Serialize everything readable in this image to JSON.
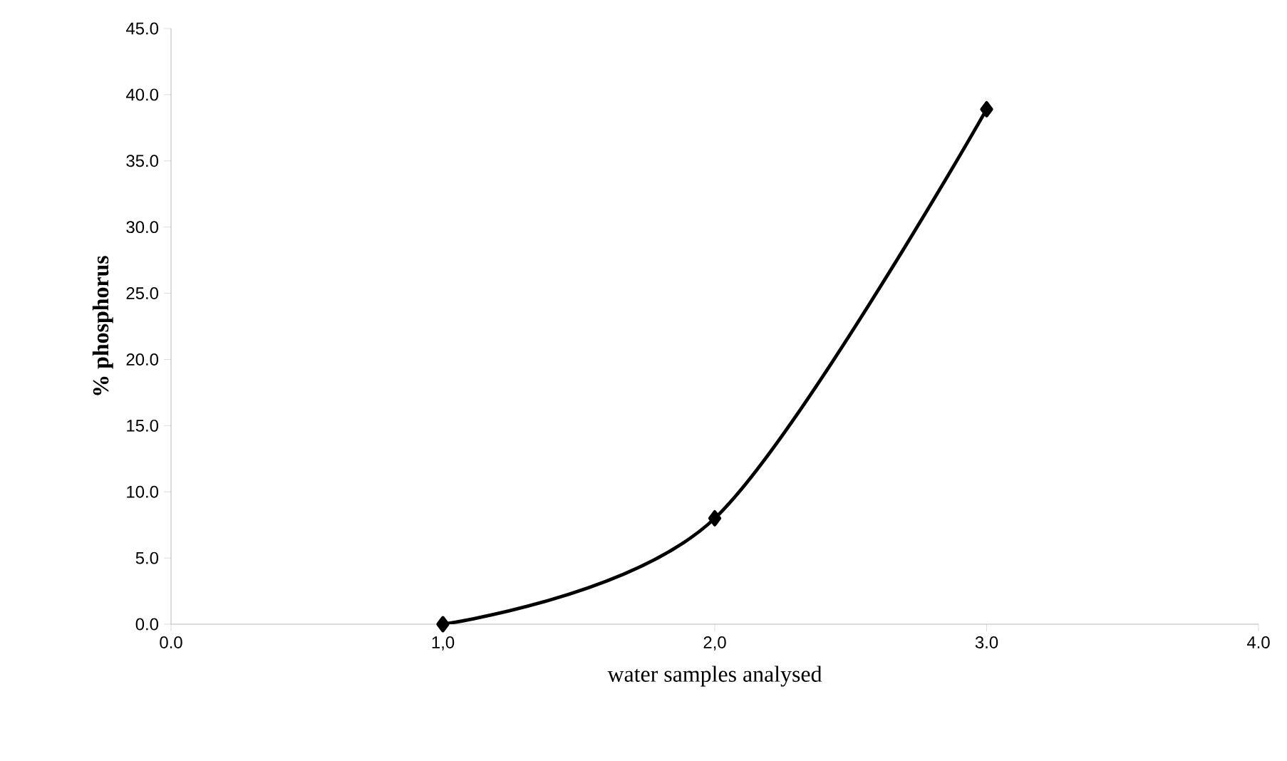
{
  "chart_data": {
    "type": "line",
    "xlabel": "water samples analysed",
    "ylabel": "% phosphorus",
    "x": [
      1,
      2,
      3
    ],
    "series": [
      {
        "color": "#000000",
        "values": [
          0.0,
          8.0,
          38.9
        ]
      }
    ],
    "xlim": [
      0,
      4
    ],
    "xticks": [
      {
        "value": 0,
        "label": "0.0"
      },
      {
        "value": 1,
        "label": "1,0"
      },
      {
        "value": 2,
        "label": "2,0"
      },
      {
        "value": 3,
        "label": "3.0"
      },
      {
        "value": 4,
        "label": "4.0"
      }
    ],
    "ylim": [
      0,
      45
    ],
    "yticks": [
      {
        "value": 0,
        "label": "0.0"
      },
      {
        "value": 5,
        "label": "5.0"
      },
      {
        "value": 10,
        "label": "10.0"
      },
      {
        "value": 15,
        "label": "15.0"
      },
      {
        "value": 20,
        "label": "20.0"
      },
      {
        "value": 25,
        "label": "25.0"
      },
      {
        "value": 30,
        "label": "30.0"
      },
      {
        "value": 35,
        "label": "35.0"
      },
      {
        "value": 40,
        "label": "40.0"
      },
      {
        "value": 45,
        "label": "45.0"
      }
    ],
    "grid": false,
    "marker": "diamond",
    "line_style": "solid"
  }
}
